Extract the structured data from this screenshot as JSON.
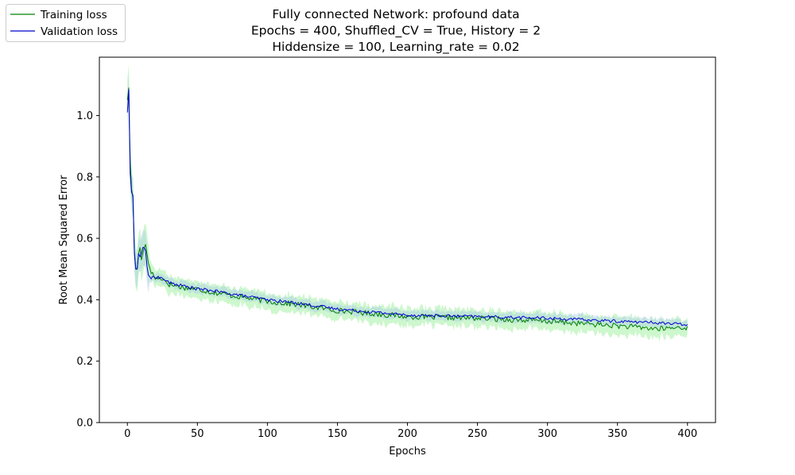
{
  "chart_data": {
    "type": "line",
    "title_lines": [
      "Fully connected Network: profound data",
      "Epochs = 400, Shuffled_CV = True, History = 2",
      "Hiddensize = 100, Learning_rate = 0.02"
    ],
    "xlabel": "Epochs",
    "ylabel": "Root Mean Squared Error",
    "xlim": [
      -20,
      420
    ],
    "ylim": [
      0,
      1.19
    ],
    "xticks": [
      0,
      50,
      100,
      150,
      200,
      250,
      300,
      350,
      400
    ],
    "yticks": [
      0.0,
      0.2,
      0.4,
      0.6,
      0.8,
      1.0
    ],
    "legend_position": "top-left-outside",
    "grid": false,
    "series": [
      {
        "name": "Training loss",
        "color": "#008000",
        "band_color": "#90ee90",
        "band_alpha": 0.45,
        "band_halfwidth": 0.028,
        "anchors": [
          [
            0,
            1.05
          ],
          [
            1,
            1.09
          ],
          [
            2,
            0.85
          ],
          [
            3,
            0.76
          ],
          [
            4,
            0.73
          ],
          [
            5,
            0.56
          ],
          [
            6,
            0.5
          ],
          [
            7,
            0.5
          ],
          [
            8,
            0.55
          ],
          [
            9,
            0.57
          ],
          [
            10,
            0.53
          ],
          [
            11,
            0.55
          ],
          [
            12,
            0.57
          ],
          [
            13,
            0.58
          ],
          [
            14,
            0.55
          ],
          [
            15,
            0.52
          ],
          [
            17,
            0.49
          ],
          [
            20,
            0.47
          ],
          [
            25,
            0.47
          ],
          [
            30,
            0.45
          ],
          [
            40,
            0.44
          ],
          [
            50,
            0.435
          ],
          [
            60,
            0.425
          ],
          [
            80,
            0.41
          ],
          [
            100,
            0.395
          ],
          [
            120,
            0.385
          ],
          [
            150,
            0.365
          ],
          [
            200,
            0.345
          ],
          [
            250,
            0.34
          ],
          [
            300,
            0.33
          ],
          [
            350,
            0.315
          ],
          [
            380,
            0.305
          ],
          [
            395,
            0.31
          ],
          [
            400,
            0.31
          ]
        ]
      },
      {
        "name": "Validation loss",
        "color": "#0000cc",
        "band_color": "#a8c8ec",
        "band_alpha": 0.4,
        "band_halfwidth": 0.015,
        "anchors": [
          [
            0,
            1.01
          ],
          [
            1,
            1.085
          ],
          [
            2,
            0.81
          ],
          [
            3,
            0.75
          ],
          [
            4,
            0.74
          ],
          [
            5,
            0.55
          ],
          [
            6,
            0.5
          ],
          [
            7,
            0.5
          ],
          [
            8,
            0.55
          ],
          [
            9,
            0.54
          ],
          [
            10,
            0.55
          ],
          [
            11,
            0.57
          ],
          [
            12,
            0.57
          ],
          [
            13,
            0.56
          ],
          [
            14,
            0.51
          ],
          [
            15,
            0.48
          ],
          [
            17,
            0.47
          ],
          [
            20,
            0.475
          ],
          [
            25,
            0.47
          ],
          [
            30,
            0.455
          ],
          [
            40,
            0.445
          ],
          [
            50,
            0.435
          ],
          [
            60,
            0.43
          ],
          [
            80,
            0.415
          ],
          [
            100,
            0.4
          ],
          [
            120,
            0.39
          ],
          [
            150,
            0.37
          ],
          [
            200,
            0.35
          ],
          [
            250,
            0.345
          ],
          [
            300,
            0.34
          ],
          [
            350,
            0.33
          ],
          [
            380,
            0.325
          ],
          [
            395,
            0.32
          ],
          [
            400,
            0.32
          ]
        ]
      }
    ]
  }
}
